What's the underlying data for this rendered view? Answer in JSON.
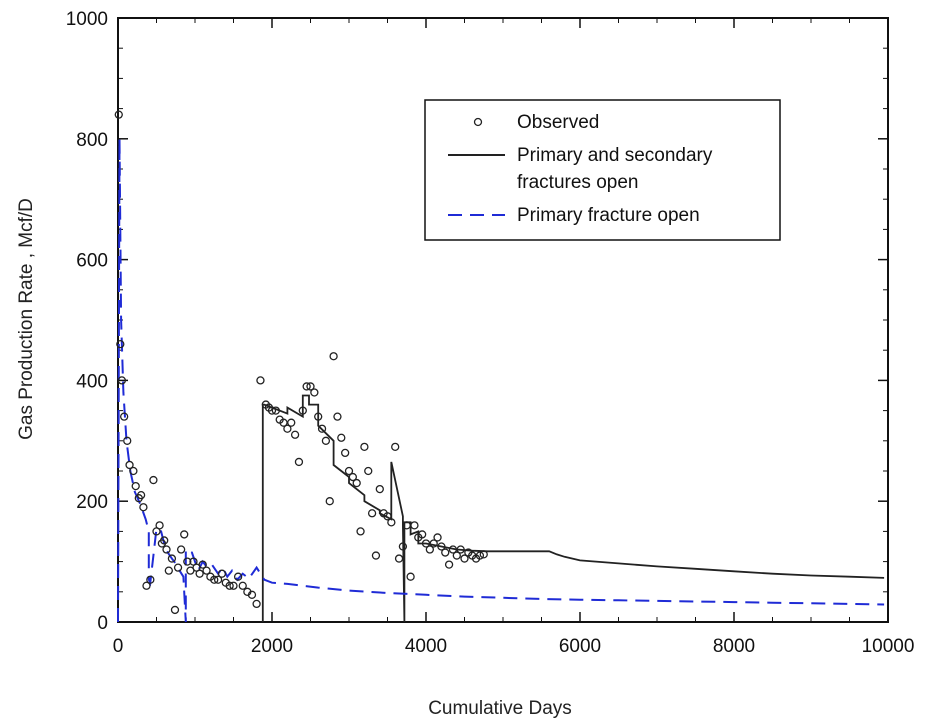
{
  "chart_data": {
    "type": "line",
    "title": "",
    "xlabel": "Cumulative Days",
    "ylabel": "Gas Production Rate , Mcf/D",
    "xlim": [
      0,
      10000
    ],
    "ylim": [
      0,
      1000
    ],
    "x_ticks": [
      "0",
      "2000",
      "4000",
      "6000",
      "8000",
      "10000"
    ],
    "y_ticks": [
      "0",
      "200",
      "400",
      "600",
      "800",
      "1000"
    ],
    "grid": false,
    "legend_position": "top-right",
    "legend": [
      {
        "label_lines": [
          "Observed"
        ],
        "style": "marker",
        "color": "#222222"
      },
      {
        "label_lines": [
          "Primary and secondary",
          "fractures open"
        ],
        "style": "solid",
        "color": "#222222"
      },
      {
        "label_lines": [
          "Primary fracture open"
        ],
        "style": "dashed",
        "color": "#1f2bd6"
      }
    ],
    "series": [
      {
        "name": "Primary and secondary fractures open",
        "style": "solid",
        "color": "#222222",
        "x": [
          1880,
          1880,
          1900,
          2200,
          2200,
          2400,
          2400,
          2480,
          2480,
          2600,
          2600,
          2800,
          2800,
          3000,
          3000,
          3200,
          3200,
          3400,
          3400,
          3550,
          3550,
          3700,
          3700,
          3720,
          3720,
          3800,
          3800,
          3900,
          3900,
          4000,
          4200,
          4400,
          4600,
          4800,
          5000,
          5200,
          5400,
          5600,
          5700,
          5800,
          6000,
          6500,
          7000,
          7500,
          8000,
          8500,
          9000,
          9500,
          9950
        ],
        "y": [
          0,
          360,
          360,
          345,
          355,
          340,
          375,
          375,
          360,
          360,
          325,
          300,
          260,
          240,
          230,
          210,
          200,
          185,
          180,
          170,
          265,
          175,
          160,
          0,
          165,
          165,
          145,
          150,
          130,
          130,
          125,
          120,
          118,
          117,
          117,
          117,
          117,
          117,
          112,
          108,
          102,
          97,
          92,
          88,
          84,
          80,
          77,
          75,
          73
        ]
      },
      {
        "name": "Primary fracture open",
        "style": "dashed",
        "color": "#1f2bd6",
        "x": [
          0,
          20,
          40,
          70,
          110,
          160,
          220,
          290,
          360,
          400,
          400,
          420,
          500,
          560,
          620,
          700,
          760,
          800,
          850,
          880,
          880,
          960,
          1040,
          1100,
          1160,
          1220,
          1300,
          1360,
          1420,
          1480,
          1550,
          1620,
          1700,
          1800,
          1900,
          2000,
          2200,
          2600,
          3000,
          3500,
          4000,
          4500,
          5000,
          5500,
          6000,
          6500,
          7000,
          7500,
          8000,
          8500,
          9000,
          9500,
          9950
        ],
        "y": [
          0,
          800,
          500,
          380,
          300,
          250,
          215,
          195,
          170,
          150,
          70,
          65,
          155,
          150,
          120,
          105,
          95,
          85,
          75,
          0,
          120,
          115,
          85,
          100,
          90,
          95,
          80,
          90,
          75,
          85,
          70,
          80,
          72,
          90,
          70,
          65,
          63,
          57,
          52,
          48,
          45,
          42,
          40,
          38,
          37,
          36,
          35,
          34,
          33,
          32,
          31,
          30,
          29
        ]
      }
    ],
    "observed": {
      "name": "Observed",
      "x": [
        10,
        30,
        50,
        80,
        120,
        150,
        200,
        230,
        270,
        300,
        330,
        370,
        420,
        460,
        500,
        540,
        570,
        600,
        630,
        660,
        700,
        740,
        780,
        820,
        860,
        900,
        940,
        980,
        1020,
        1060,
        1100,
        1150,
        1200,
        1250,
        1300,
        1350,
        1400,
        1450,
        1500,
        1560,
        1620,
        1680,
        1740,
        1800,
        1850,
        1920,
        1960,
        2000,
        2050,
        2100,
        2150,
        2200,
        2250,
        2300,
        2350,
        2400,
        2450,
        2500,
        2550,
        2600,
        2650,
        2700,
        2750,
        2800,
        2850,
        2900,
        2950,
        3000,
        3050,
        3100,
        3150,
        3200,
        3250,
        3300,
        3350,
        3400,
        3450,
        3500,
        3550,
        3600,
        3650,
        3700,
        3750,
        3800,
        3850,
        3900,
        3950,
        4000,
        4050,
        4100,
        4150,
        4200,
        4250,
        4300,
        4350,
        4400,
        4450,
        4500,
        4550,
        4600,
        4650,
        4700,
        4750
      ],
      "y": [
        840,
        460,
        400,
        340,
        300,
        260,
        250,
        225,
        205,
        210,
        190,
        60,
        70,
        235,
        150,
        160,
        130,
        135,
        120,
        85,
        105,
        20,
        90,
        120,
        145,
        100,
        85,
        100,
        90,
        80,
        95,
        85,
        75,
        70,
        70,
        80,
        65,
        60,
        60,
        75,
        60,
        50,
        45,
        30,
        400,
        360,
        355,
        350,
        350,
        335,
        330,
        320,
        330,
        310,
        265,
        350,
        390,
        390,
        380,
        340,
        320,
        300,
        200,
        440,
        340,
        305,
        280,
        250,
        240,
        230,
        150,
        290,
        250,
        180,
        110,
        220,
        180,
        175,
        165,
        290,
        105,
        125,
        160,
        75,
        160,
        140,
        145,
        130,
        120,
        130,
        140,
        125,
        115,
        95,
        120,
        110,
        120,
        105,
        115,
        110,
        105,
        110,
        112
      ]
    }
  }
}
